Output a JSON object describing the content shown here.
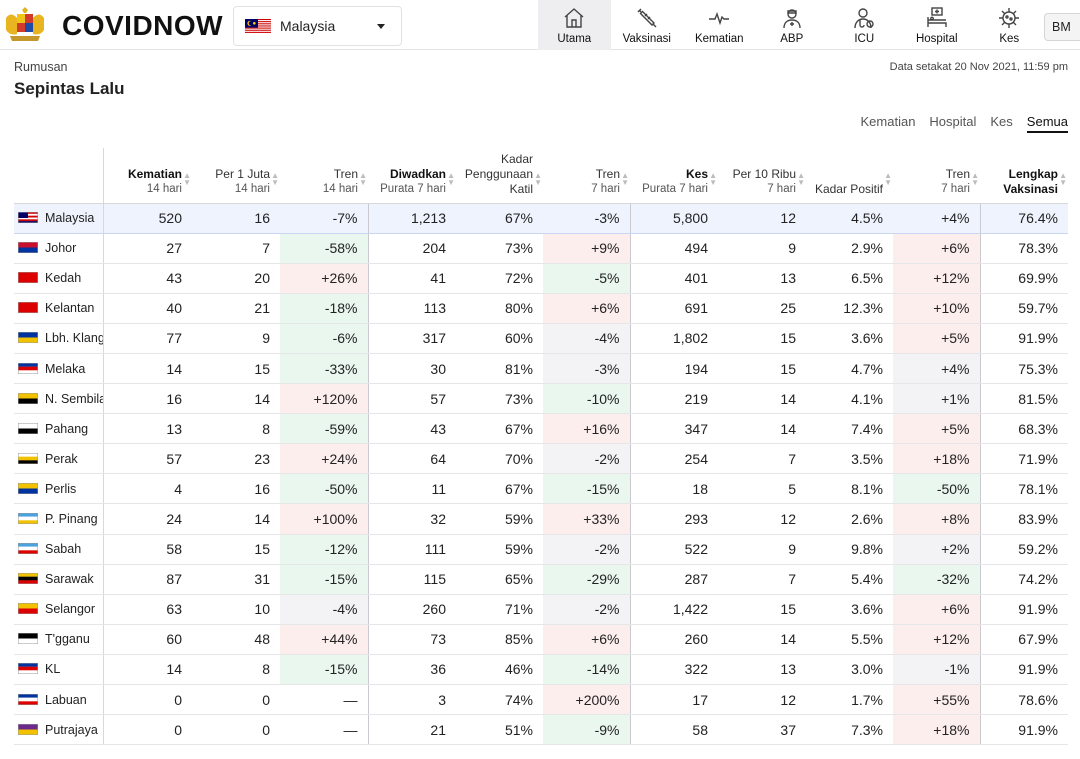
{
  "header": {
    "brand": "COVIDNOW",
    "country": "Malaysia",
    "lang": "BM",
    "nav": [
      {
        "label": "Utama",
        "icon": "home-icon",
        "active": true
      },
      {
        "label": "Vaksinasi",
        "icon": "syringe-icon",
        "active": false
      },
      {
        "label": "Kematian",
        "icon": "heartbeat-icon",
        "active": false
      },
      {
        "label": "ABP",
        "icon": "health-worker-icon",
        "active": false
      },
      {
        "label": "ICU",
        "icon": "icu-doctor-icon",
        "active": false
      },
      {
        "label": "Hospital",
        "icon": "hospital-bed-icon",
        "active": false
      },
      {
        "label": "Kes",
        "icon": "virus-icon",
        "active": false
      }
    ]
  },
  "summary": {
    "subtitle": "Rumusan",
    "title": "Sepintas Lalu",
    "updated": "Data setakat 20 Nov 2021, 11:59 pm",
    "filters": [
      {
        "label": "Kematian",
        "active": false
      },
      {
        "label": "Hospital",
        "active": false
      },
      {
        "label": "Kes",
        "active": false
      },
      {
        "label": "Semua",
        "active": true
      }
    ]
  },
  "table": {
    "columns": [
      {
        "key": "state",
        "title": "",
        "sub": ""
      },
      {
        "key": "deaths",
        "title": "Kematian",
        "sub": "14 hari",
        "bold": true
      },
      {
        "key": "deaths_per_m",
        "title": "Per 1 Juta",
        "sub": "14 hari"
      },
      {
        "key": "deaths_trend",
        "title": "Tren",
        "sub": "14 hari"
      },
      {
        "key": "admitted",
        "title": "Diwadkan",
        "sub": "Purata 7 hari",
        "bold": true
      },
      {
        "key": "bed_util",
        "title": "Kadar Penggunaan Katil",
        "sub": ""
      },
      {
        "key": "admit_trend",
        "title": "Tren",
        "sub": "7 hari"
      },
      {
        "key": "cases",
        "title": "Kes",
        "sub": "Purata 7 hari",
        "bold": true
      },
      {
        "key": "cases_per_10k",
        "title": "Per 10 Ribu",
        "sub": "7 hari"
      },
      {
        "key": "positivity",
        "title": "Kadar Positif",
        "sub": ""
      },
      {
        "key": "cases_trend",
        "title": "Tren",
        "sub": "7 hari"
      },
      {
        "key": "vax",
        "title": "Lengkap Vaksinasi",
        "sub": "",
        "bold": true
      }
    ],
    "rows": [
      {
        "state": "Malaysia",
        "flag": "flag-malaysia",
        "national": true,
        "cells": [
          "520",
          "16",
          "-7%",
          "1,213",
          "67%",
          "-3%",
          "5,800",
          "12",
          "4.5%",
          "+4%",
          "76.4%"
        ],
        "trends": [
          "down",
          "flat",
          "flat"
        ]
      },
      {
        "state": "Johor",
        "flag": "flag-johor",
        "cells": [
          "27",
          "7",
          "-58%",
          "204",
          "73%",
          "+9%",
          "494",
          "9",
          "2.9%",
          "+6%",
          "78.3%"
        ],
        "trends": [
          "down",
          "up",
          "up"
        ]
      },
      {
        "state": "Kedah",
        "flag": "flag-kedah",
        "cells": [
          "43",
          "20",
          "+26%",
          "41",
          "72%",
          "-5%",
          "401",
          "13",
          "6.5%",
          "+12%",
          "69.9%"
        ],
        "trends": [
          "up",
          "down",
          "up"
        ]
      },
      {
        "state": "Kelantan",
        "flag": "flag-kelantan",
        "cells": [
          "40",
          "21",
          "-18%",
          "113",
          "80%",
          "+6%",
          "691",
          "25",
          "12.3%",
          "+10%",
          "59.7%"
        ],
        "trends": [
          "down",
          "up",
          "up"
        ]
      },
      {
        "state": "Lbh. Klang",
        "flag": "flag-klang",
        "cells": [
          "77",
          "9",
          "-6%",
          "317",
          "60%",
          "-4%",
          "1,802",
          "15",
          "3.6%",
          "+5%",
          "91.9%"
        ],
        "trends": [
          "down",
          "flat",
          "up"
        ]
      },
      {
        "state": "Melaka",
        "flag": "flag-melaka",
        "cells": [
          "14",
          "15",
          "-33%",
          "30",
          "81%",
          "-3%",
          "194",
          "15",
          "4.7%",
          "+4%",
          "75.3%"
        ],
        "trends": [
          "down",
          "flat",
          "flat"
        ]
      },
      {
        "state": "N. Sembilan",
        "flag": "flag-nsembilan",
        "cells": [
          "16",
          "14",
          "+120%",
          "57",
          "73%",
          "-10%",
          "219",
          "14",
          "4.1%",
          "+1%",
          "81.5%"
        ],
        "trends": [
          "up",
          "down",
          "flat"
        ]
      },
      {
        "state": "Pahang",
        "flag": "flag-pahang",
        "cells": [
          "13",
          "8",
          "-59%",
          "43",
          "67%",
          "+16%",
          "347",
          "14",
          "7.4%",
          "+5%",
          "68.3%"
        ],
        "trends": [
          "down",
          "up",
          "up"
        ]
      },
      {
        "state": "Perak",
        "flag": "flag-perak",
        "cells": [
          "57",
          "23",
          "+24%",
          "64",
          "70%",
          "-2%",
          "254",
          "7",
          "3.5%",
          "+18%",
          "71.9%"
        ],
        "trends": [
          "up",
          "flat",
          "up"
        ]
      },
      {
        "state": "Perlis",
        "flag": "flag-perlis",
        "cells": [
          "4",
          "16",
          "-50%",
          "11",
          "67%",
          "-15%",
          "18",
          "5",
          "8.1%",
          "-50%",
          "78.1%"
        ],
        "trends": [
          "down",
          "down",
          "down"
        ]
      },
      {
        "state": "P. Pinang",
        "flag": "flag-pinang",
        "cells": [
          "24",
          "14",
          "+100%",
          "32",
          "59%",
          "+33%",
          "293",
          "12",
          "2.6%",
          "+8%",
          "83.9%"
        ],
        "trends": [
          "up",
          "up",
          "up"
        ]
      },
      {
        "state": "Sabah",
        "flag": "flag-sabah",
        "cells": [
          "58",
          "15",
          "-12%",
          "111",
          "59%",
          "-2%",
          "522",
          "9",
          "9.8%",
          "+2%",
          "59.2%"
        ],
        "trends": [
          "down",
          "flat",
          "flat"
        ]
      },
      {
        "state": "Sarawak",
        "flag": "flag-sarawak",
        "cells": [
          "87",
          "31",
          "-15%",
          "115",
          "65%",
          "-29%",
          "287",
          "7",
          "5.4%",
          "-32%",
          "74.2%"
        ],
        "trends": [
          "down",
          "down",
          "down"
        ]
      },
      {
        "state": "Selangor",
        "flag": "flag-selangor",
        "cells": [
          "63",
          "10",
          "-4%",
          "260",
          "71%",
          "-2%",
          "1,422",
          "15",
          "3.6%",
          "+6%",
          "91.9%"
        ],
        "trends": [
          "flat",
          "flat",
          "up"
        ]
      },
      {
        "state": "T'gganu",
        "flag": "flag-terengganu",
        "cells": [
          "60",
          "48",
          "+44%",
          "73",
          "85%",
          "+6%",
          "260",
          "14",
          "5.5%",
          "+12%",
          "67.9%"
        ],
        "trends": [
          "up",
          "up",
          "up"
        ]
      },
      {
        "state": "KL",
        "flag": "flag-kl",
        "cells": [
          "14",
          "8",
          "-15%",
          "36",
          "46%",
          "-14%",
          "322",
          "13",
          "3.0%",
          "-1%",
          "91.9%"
        ],
        "trends": [
          "down",
          "down",
          "flat"
        ]
      },
      {
        "state": "Labuan",
        "flag": "flag-labuan",
        "cells": [
          "0",
          "0",
          "—",
          "3",
          "74%",
          "+200%",
          "17",
          "12",
          "1.7%",
          "+55%",
          "78.6%"
        ],
        "trends": [
          "none",
          "up",
          "up"
        ]
      },
      {
        "state": "Putrajaya",
        "flag": "flag-putrajaya",
        "cells": [
          "0",
          "0",
          "—",
          "21",
          "51%",
          "-9%",
          "58",
          "37",
          "7.3%",
          "+18%",
          "91.9%"
        ],
        "trends": [
          "none",
          "down",
          "up"
        ]
      }
    ]
  }
}
